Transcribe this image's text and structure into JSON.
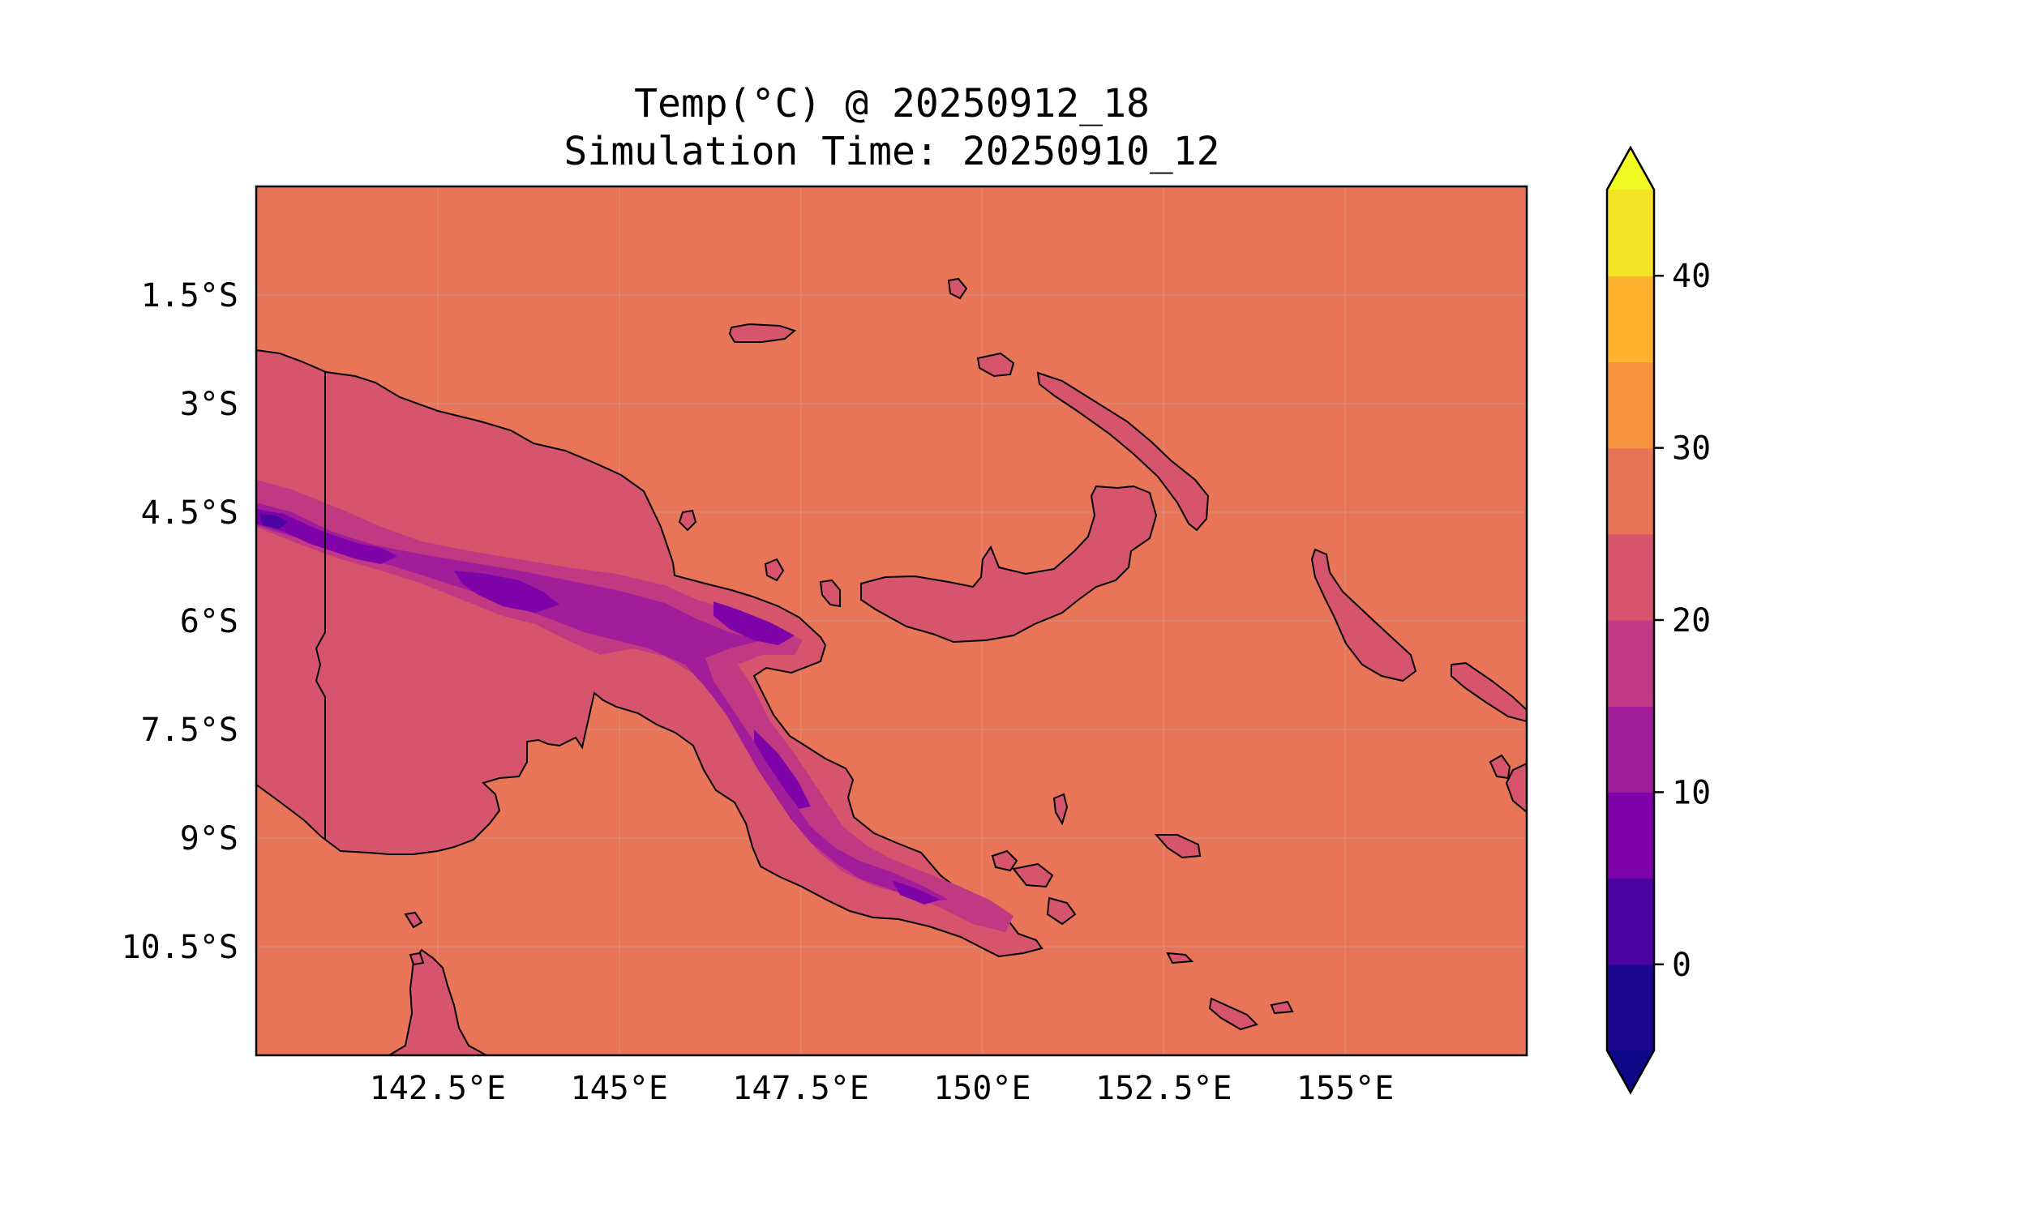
{
  "title": {
    "line1": "Temp(°C) @ 20250912_18",
    "line2": "Simulation Time: 20250910_12"
  },
  "map": {
    "extent": {
      "lon_min": 140,
      "lon_max": 157.5,
      "lat_min": -12,
      "lat_max": 0
    },
    "ocean_color": "#e97558",
    "land_color": "#d6556d",
    "coast_color": "#000000",
    "gridline_color": "#d98a78"
  },
  "axes": {
    "lat_ticks": [
      {
        "value": -1.5,
        "label": "1.5°S"
      },
      {
        "value": -3,
        "label": "3°S"
      },
      {
        "value": -4.5,
        "label": "4.5°S"
      },
      {
        "value": -6,
        "label": "6°S"
      },
      {
        "value": -7.5,
        "label": "7.5°S"
      },
      {
        "value": -9,
        "label": "9°S"
      },
      {
        "value": -10.5,
        "label": "10.5°S"
      }
    ],
    "lon_ticks": [
      {
        "value": 142.5,
        "label": "142.5°E"
      },
      {
        "value": 145,
        "label": "145°E"
      },
      {
        "value": 147.5,
        "label": "147.5°E"
      },
      {
        "value": 150,
        "label": "150°E"
      },
      {
        "value": 152.5,
        "label": "152.5°E"
      },
      {
        "value": 155,
        "label": "155°E"
      }
    ]
  },
  "colorbar": {
    "levels": [
      -5,
      0,
      5,
      10,
      15,
      20,
      25,
      30,
      35,
      40,
      45
    ],
    "colors": [
      "#1c078f",
      "#4c02a1",
      "#7e03a8",
      "#a21d9a",
      "#c03a83",
      "#d6556d",
      "#e97558",
      "#f7923f",
      "#fdb32f",
      "#f3e426"
    ],
    "under_color": "#0d0887",
    "over_color": "#f0f921",
    "ticks": [
      {
        "value": 0,
        "label": "0"
      },
      {
        "value": 10,
        "label": "10"
      },
      {
        "value": 20,
        "label": "20"
      },
      {
        "value": 30,
        "label": "30"
      },
      {
        "value": 40,
        "label": "40"
      }
    ]
  }
}
